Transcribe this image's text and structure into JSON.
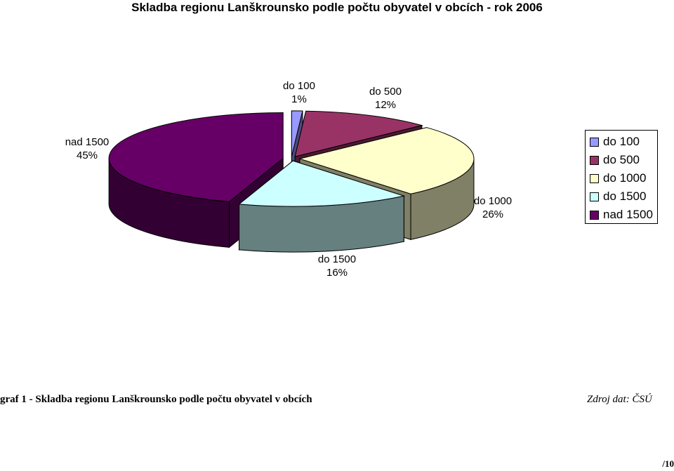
{
  "chart_data": {
    "type": "pie",
    "title": "Skladba regionu Lanškrounsko podle počtu obyvatel v obcích - rok 2006",
    "categories": [
      "do 100",
      "do 500",
      "do 1000",
      "do 1500",
      "nad 1500"
    ],
    "values": [
      1,
      12,
      26,
      16,
      45
    ],
    "unit": "%",
    "data_labels": [
      {
        "category": "do 100",
        "value": "1%"
      },
      {
        "category": "do 500",
        "value": "12%"
      },
      {
        "category": "do 1000",
        "value": "26%"
      },
      {
        "category": "do 1500",
        "value": "16%"
      },
      {
        "category": "nad 1500",
        "value": "45%"
      }
    ],
    "colors": [
      "#9999ff",
      "#993366",
      "#ffffcc",
      "#ccffff",
      "#660066"
    ],
    "side_colors": [
      "#4c4c80",
      "#4c1933",
      "#808066",
      "#668080",
      "#330033"
    ],
    "legend": {
      "placement": "right",
      "items": [
        "do 100",
        "do 500",
        "do 1000",
        "do 1500",
        "nad 1500"
      ]
    },
    "exploded": true,
    "three_d": true
  },
  "caption": "graf 1 - Skladba regionu Lanškrounsko podle počtu obyvatel v obcích",
  "source": "Zdroj dat: ČSÚ",
  "page_number": "/10"
}
